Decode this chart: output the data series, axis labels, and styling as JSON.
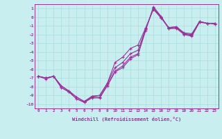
{
  "xlabel": "Windchill (Refroidissement éolien,°C)",
  "x_values": [
    0,
    1,
    2,
    3,
    4,
    5,
    6,
    7,
    8,
    9,
    10,
    11,
    12,
    13,
    14,
    15,
    16,
    17,
    18,
    19,
    20,
    21,
    22,
    23
  ],
  "line1": [
    -6.8,
    -7.1,
    -6.8,
    -8.1,
    -8.6,
    -9.4,
    -9.8,
    -9.3,
    -9.3,
    -7.9,
    -6.3,
    -5.8,
    -4.8,
    -4.3,
    -1.5,
    1.2,
    0.1,
    -1.3,
    -1.3,
    -2.0,
    -2.2,
    -0.6,
    -0.7,
    -0.8
  ],
  "line2": [
    -6.8,
    -7.0,
    -6.8,
    -7.9,
    -8.5,
    -9.2,
    -9.7,
    -9.1,
    -9.0,
    -7.6,
    -5.8,
    -5.2,
    -4.2,
    -3.8,
    -1.3,
    1.0,
    0.0,
    -1.2,
    -1.1,
    -1.9,
    -2.0,
    -0.5,
    -0.7,
    -0.7
  ],
  "line3": [
    -6.8,
    -7.0,
    -6.8,
    -7.9,
    -8.5,
    -9.2,
    -9.7,
    -9.1,
    -9.0,
    -7.6,
    -5.2,
    -4.6,
    -3.6,
    -3.2,
    -1.2,
    0.9,
    -0.1,
    -1.2,
    -1.1,
    -1.8,
    -1.9,
    -0.5,
    -0.7,
    -0.7
  ],
  "line4": [
    -6.8,
    -7.0,
    -6.8,
    -8.1,
    -8.6,
    -9.4,
    -9.8,
    -9.2,
    -9.2,
    -7.8,
    -6.2,
    -5.6,
    -4.6,
    -4.2,
    -1.4,
    1.1,
    0.0,
    -1.3,
    -1.2,
    -1.9,
    -2.1,
    -0.5,
    -0.7,
    -0.7
  ],
  "line_color": "#993399",
  "bg_color": "#c8eef0",
  "grid_color": "#aadddd",
  "ylim": [
    -10.5,
    1.5
  ],
  "xlim": [
    -0.5,
    23.5
  ],
  "yticks": [
    1,
    0,
    -1,
    -2,
    -3,
    -4,
    -5,
    -6,
    -7,
    -8,
    -9,
    -10
  ],
  "xticks": [
    0,
    1,
    2,
    3,
    4,
    5,
    6,
    7,
    8,
    9,
    10,
    11,
    12,
    13,
    14,
    15,
    16,
    17,
    18,
    19,
    20,
    21,
    22,
    23
  ]
}
